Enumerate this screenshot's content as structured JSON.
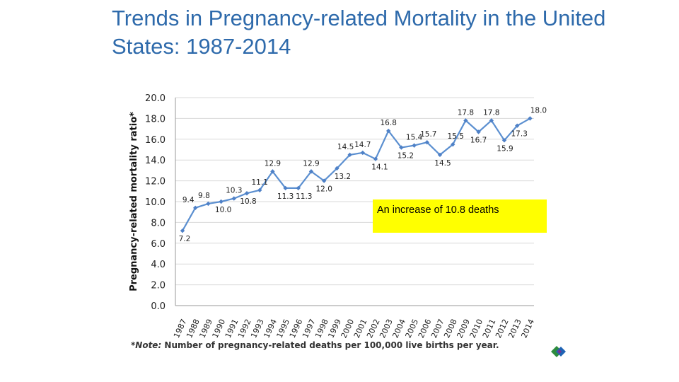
{
  "slide": {
    "title": "Trends in Pregnancy-related Mortality in the United States: 1987-2014"
  },
  "callout": {
    "text": "An increase of 10.8 deaths"
  },
  "note": {
    "label": "*Note:",
    "text": " Number of pregnancy-related deaths per 100,000 live births per year."
  },
  "logo": {
    "name": "diamond-logo"
  },
  "colors": {
    "title": "#2e6aab",
    "line": "#5b8fd0",
    "callout_bg": "#ffff00",
    "grid": "#d9d9d9"
  },
  "chart_data": {
    "type": "line",
    "title": "",
    "xlabel": "",
    "ylabel": "Pregnancy-related mortality ratio*",
    "ylim": [
      0,
      20
    ],
    "yticks": [
      "0.0",
      "2.0",
      "4.0",
      "6.0",
      "8.0",
      "10.0",
      "12.0",
      "14.0",
      "16.0",
      "18.0",
      "20.0"
    ],
    "grid": true,
    "categories": [
      "1987",
      "1988",
      "1989",
      "1990",
      "1991",
      "1992",
      "1993",
      "1994",
      "1995",
      "1996",
      "1997",
      "1998",
      "1999",
      "2000",
      "2001",
      "2002",
      "2003",
      "2004",
      "2005",
      "2006",
      "2007",
      "2008",
      "2009",
      "2010",
      "2011",
      "2012",
      "2013",
      "2014"
    ],
    "values": [
      7.2,
      9.4,
      9.8,
      10.0,
      10.3,
      10.8,
      11.1,
      12.9,
      11.3,
      11.3,
      12.9,
      12.0,
      13.2,
      14.5,
      14.7,
      14.1,
      16.8,
      15.2,
      15.4,
      15.7,
      14.5,
      15.5,
      17.8,
      16.7,
      17.8,
      15.9,
      17.3,
      18.0
    ],
    "data_labels": [
      "7.2",
      "9.4",
      "9.8",
      "10.0",
      "10.3",
      "10.8",
      "11.1",
      "12.9",
      "11.3",
      "11.3",
      "12.9",
      "12.0",
      "13.2",
      "14.5",
      "14.7",
      "14.1",
      "16.8",
      "15.2",
      "15.4",
      "15.7",
      "14.5",
      "15.5",
      "17.8",
      "16.7",
      "17.8",
      "15.9",
      "17.3",
      "18.0"
    ]
  }
}
